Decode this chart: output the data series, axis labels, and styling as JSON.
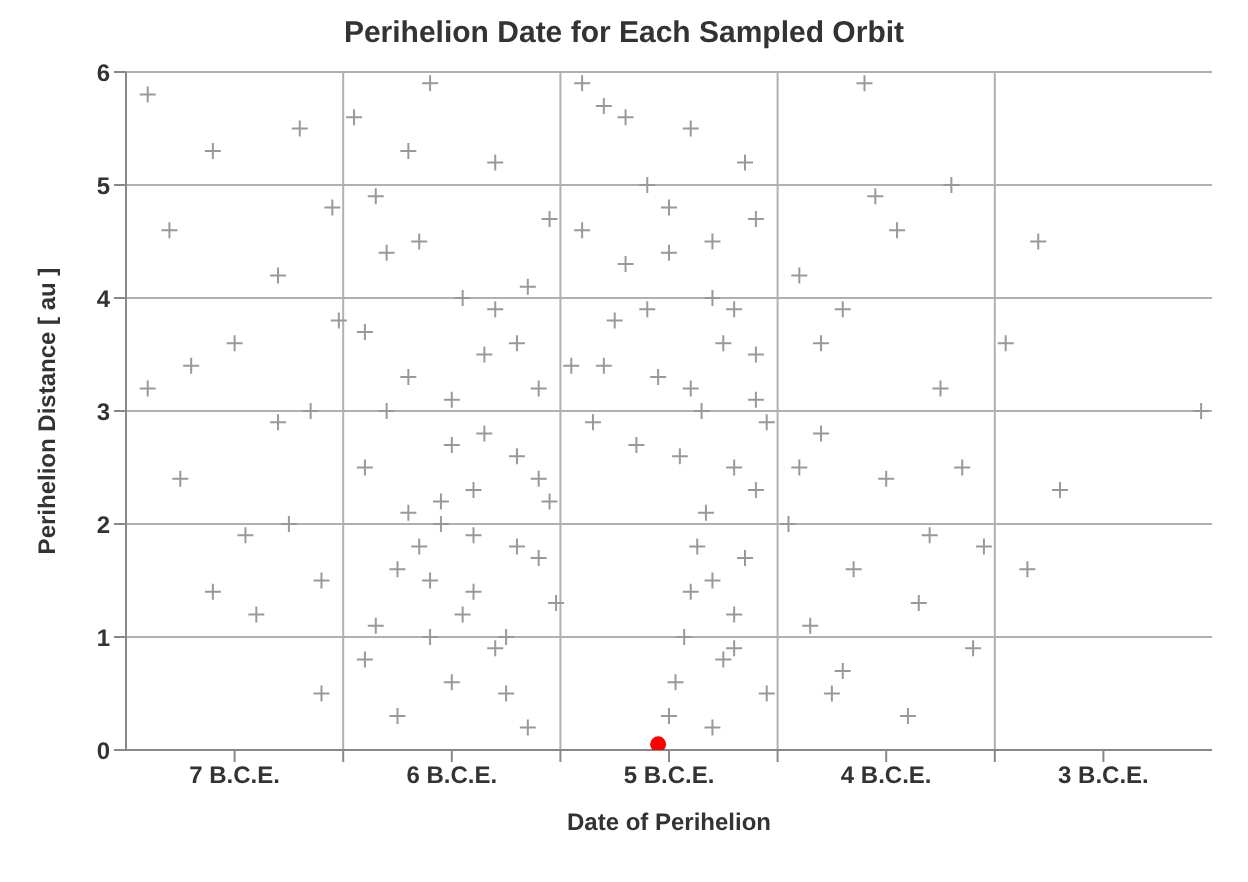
{
  "chart_data": {
    "type": "scatter",
    "title": "Perihelion Date for Each Sampled Orbit",
    "xlabel": "Date of Perihelion",
    "ylabel": "Perihelion Distance [ au ]",
    "xlim": [
      -7,
      -2
    ],
    "xticks": [
      {
        "value": -6.5,
        "label": "7 B.C.E."
      },
      {
        "value": -6,
        "label": null
      },
      {
        "value": -5.5,
        "label": "6 B.C.E."
      },
      {
        "value": -5,
        "label": null
      },
      {
        "value": -4.5,
        "label": "5 B.C.E."
      },
      {
        "value": -4,
        "label": null
      },
      {
        "value": -3.5,
        "label": "4 B.C.E."
      },
      {
        "value": -3,
        "label": null
      },
      {
        "value": -2.5,
        "label": "3 B.C.E."
      }
    ],
    "ylim": [
      0,
      6
    ],
    "yticks": [
      0,
      1,
      2,
      3,
      4,
      5,
      6
    ],
    "grid": true,
    "series": [
      {
        "color": "#999999",
        "marker": "cross",
        "x": [
          -6.9,
          -6.8,
          -6.7,
          -6.6,
          -6.75,
          -6.5,
          -6.4,
          -6.3,
          -6.25,
          -6.2,
          -6.15,
          -6.1,
          -6.05,
          -6.3,
          -6.45,
          -6.9,
          -6.6,
          -6.1,
          -6.02,
          -5.95,
          -5.9,
          -5.85,
          -5.8,
          -5.75,
          -5.7,
          -5.65,
          -5.6,
          -5.55,
          -5.5,
          -5.45,
          -5.4,
          -5.35,
          -5.3,
          -5.25,
          -5.2,
          -5.15,
          -5.1,
          -5.05,
          -5.02,
          -5.9,
          -5.8,
          -5.7,
          -5.6,
          -5.5,
          -5.4,
          -5.3,
          -5.2,
          -5.1,
          -5.85,
          -5.75,
          -5.65,
          -5.55,
          -5.45,
          -5.35,
          -5.25,
          -5.15,
          -5.05,
          -5.9,
          -5.7,
          -5.5,
          -5.3,
          -5.1,
          -5.6,
          -5.4,
          -5.2,
          -4.95,
          -4.9,
          -4.85,
          -4.8,
          -4.75,
          -4.7,
          -4.65,
          -4.6,
          -4.55,
          -4.5,
          -4.45,
          -4.4,
          -4.35,
          -4.3,
          -4.25,
          -4.2,
          -4.15,
          -4.1,
          -4.9,
          -4.8,
          -4.7,
          -4.6,
          -4.5,
          -4.4,
          -4.3,
          -4.2,
          -4.1,
          -4.05,
          -4.5,
          -4.47,
          -4.43,
          -4.4,
          -4.37,
          -4.33,
          -4.3,
          -4.25,
          -4.2,
          -4.15,
          -4.1,
          -4.05,
          -4.3,
          -4.2,
          -4.1,
          -3.95,
          -3.9,
          -3.85,
          -3.8,
          -3.75,
          -3.7,
          -3.65,
          -3.6,
          -3.5,
          -3.45,
          -3.4,
          -3.3,
          -3.25,
          -3.2,
          -3.15,
          -3.1,
          -3.9,
          -3.8,
          -3.7,
          -3.55,
          -3.35,
          -3.05,
          -2.95,
          -2.85,
          -2.8,
          -2.7,
          -2.05
        ],
        "values": [
          5.8,
          4.6,
          3.4,
          5.3,
          2.4,
          3.6,
          1.2,
          4.2,
          2.0,
          5.5,
          3.0,
          0.5,
          4.8,
          2.9,
          1.9,
          3.2,
          1.4,
          1.5,
          3.8,
          5.6,
          2.5,
          1.1,
          4.4,
          0.3,
          3.3,
          1.8,
          5.9,
          2.2,
          0.6,
          4.0,
          1.4,
          2.8,
          5.2,
          1.0,
          3.6,
          0.2,
          2.4,
          4.7,
          1.3,
          0.8,
          3.0,
          2.1,
          1.5,
          3.1,
          1.9,
          0.9,
          2.6,
          1.7,
          4.9,
          1.6,
          4.5,
          2.0,
          1.2,
          3.5,
          0.5,
          4.1,
          2.2,
          3.7,
          5.3,
          2.7,
          3.9,
          3.2,
          1.0,
          2.3,
          1.8,
          3.4,
          4.6,
          2.9,
          5.7,
          3.8,
          4.3,
          2.7,
          5.0,
          3.3,
          4.4,
          2.6,
          5.5,
          3.0,
          4.0,
          3.6,
          2.5,
          5.2,
          3.1,
          5.9,
          3.4,
          5.6,
          3.9,
          4.8,
          3.2,
          4.5,
          3.9,
          4.7,
          2.9,
          0.3,
          0.6,
          1.0,
          1.4,
          1.8,
          2.1,
          0.2,
          0.8,
          1.2,
          1.7,
          2.3,
          0.5,
          1.5,
          0.9,
          3.5,
          2.0,
          4.2,
          1.1,
          2.8,
          0.5,
          3.9,
          1.6,
          5.9,
          2.4,
          4.6,
          0.3,
          1.9,
          3.2,
          5.0,
          2.5,
          0.9,
          2.5,
          3.6,
          0.7,
          4.9,
          1.3,
          1.8,
          3.6,
          1.6,
          4.5,
          2.3,
          3.0
        ]
      },
      {
        "color": "#ff0000",
        "marker": "circle",
        "x": [
          -4.55
        ],
        "values": [
          0.05
        ]
      }
    ]
  }
}
